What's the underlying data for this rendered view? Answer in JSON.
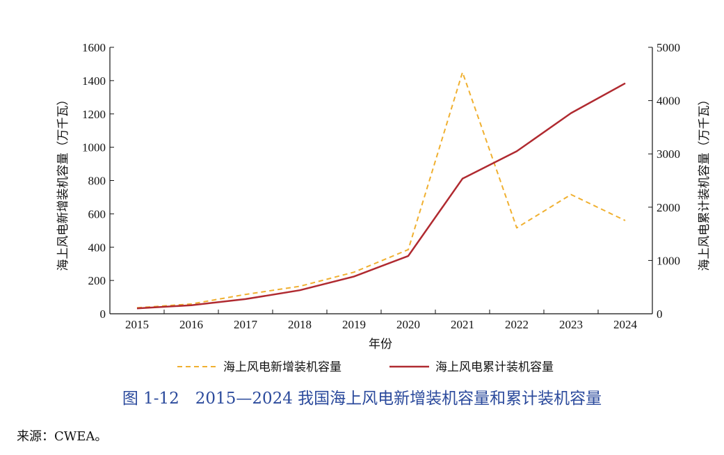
{
  "chart_data": {
    "type": "line",
    "categories": [
      "2015",
      "2016",
      "2017",
      "2018",
      "2019",
      "2020",
      "2021",
      "2022",
      "2023",
      "2024"
    ],
    "xlabel": "年份",
    "ylabel_left": "海上风电新增装机容量（万千瓦）",
    "ylabel_right": "海上风电累计装机容量（万千瓦）",
    "ylim_left": [
      0,
      1600
    ],
    "yticks_left": [
      0,
      200,
      400,
      600,
      800,
      1000,
      1200,
      1400,
      1600
    ],
    "ylim_right": [
      0,
      5000
    ],
    "yticks_right": [
      0,
      1000,
      2000,
      3000,
      4000,
      5000
    ],
    "legend_position": "bottom",
    "series": [
      {
        "name": "海上风电新增装机容量",
        "axis": "left",
        "style": "dashed",
        "color": "#f0b030",
        "values": [
          36,
          59,
          116,
          165,
          250,
          385,
          1450,
          516,
          716,
          560
        ]
      },
      {
        "name": "海上风电累计装机容量",
        "axis": "right",
        "style": "solid",
        "color": "#b02a30",
        "values": [
          100,
          160,
          276,
          441,
          700,
          1085,
          2535,
          3050,
          3765,
          4325
        ]
      }
    ]
  },
  "caption": "图 1-12　2015—2024 我国海上风电新增装机容量和累计装机容量",
  "source": "来源：CWEA。"
}
